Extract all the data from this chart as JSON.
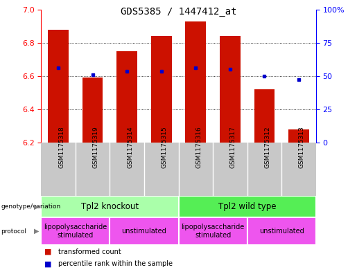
{
  "title": "GDS5385 / 1447412_at",
  "samples": [
    "GSM1175318",
    "GSM1175319",
    "GSM1175314",
    "GSM1175315",
    "GSM1175316",
    "GSM1175317",
    "GSM1175312",
    "GSM1175313"
  ],
  "bar_values": [
    6.88,
    6.59,
    6.75,
    6.84,
    6.93,
    6.84,
    6.52,
    6.28
  ],
  "bar_base": 6.2,
  "blue_dot_values": [
    6.65,
    6.61,
    6.63,
    6.63,
    6.65,
    6.64,
    6.6,
    6.58
  ],
  "ylim": [
    6.2,
    7.0
  ],
  "ylim_right": [
    0,
    100
  ],
  "yticks_left": [
    6.2,
    6.4,
    6.6,
    6.8,
    7.0
  ],
  "yticks_right": [
    0,
    25,
    50,
    75,
    100
  ],
  "ytick_labels_right": [
    "0",
    "25",
    "50",
    "75",
    "100%"
  ],
  "bar_color": "#cc1100",
  "dot_color": "#0000cc",
  "sample_bg": "#c8c8c8",
  "genotype_labels": [
    {
      "text": "Tpl2 knockout",
      "start": 0,
      "end": 3,
      "color": "#aaffaa"
    },
    {
      "text": "Tpl2 wild type",
      "start": 4,
      "end": 7,
      "color": "#55ee55"
    }
  ],
  "protocol_labels": [
    {
      "text": "lipopolysaccharide\nstimulated",
      "start": 0,
      "end": 1,
      "color": "#ee55ee"
    },
    {
      "text": "unstimulated",
      "start": 2,
      "end": 3,
      "color": "#ee55ee"
    },
    {
      "text": "lipopolysaccharide\nstimulated",
      "start": 4,
      "end": 5,
      "color": "#ee55ee"
    },
    {
      "text": "unstimulated",
      "start": 6,
      "end": 7,
      "color": "#ee55ee"
    }
  ],
  "legend_red_label": "transformed count",
  "legend_blue_label": "percentile rank within the sample",
  "genotype_label_text": "genotype/variation",
  "protocol_label_text": "protocol"
}
